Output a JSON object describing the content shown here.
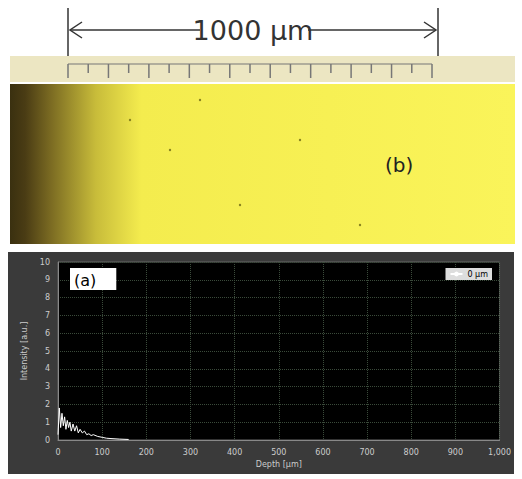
{
  "image": {
    "scale_label": "1000 µm",
    "panel_label": "(b)"
  },
  "chart_data": {
    "type": "line",
    "title": "(a)",
    "x_label": "Depth [µm]",
    "y_label": "Intensity [a.u.]",
    "x": [
      0,
      3,
      6,
      9,
      12,
      15,
      18,
      21,
      24,
      27,
      30,
      34,
      38,
      42,
      46,
      50,
      55,
      60,
      65,
      70,
      75,
      80,
      90,
      100,
      110,
      120,
      140,
      160
    ],
    "series": [
      {
        "name": "0 µm",
        "color": "#ffffff",
        "values": [
          0.3,
          1.8,
          0.7,
          1.5,
          0.8,
          1.3,
          0.6,
          1.1,
          0.7,
          1.0,
          0.5,
          0.9,
          0.5,
          0.8,
          0.4,
          0.6,
          0.4,
          0.5,
          0.3,
          0.35,
          0.25,
          0.3,
          0.2,
          0.15,
          0.1,
          0.08,
          0.05,
          0.03
        ]
      }
    ],
    "xlim": [
      0,
      1000
    ],
    "xticks": [
      0,
      100,
      200,
      300,
      400,
      500,
      600,
      700,
      800,
      900,
      1000
    ],
    "ylim": [
      0,
      10
    ],
    "yticks": [
      0,
      1,
      2,
      3,
      4,
      5,
      6,
      7,
      8,
      9,
      10
    ],
    "grid": true,
    "legend": "upper right"
  }
}
